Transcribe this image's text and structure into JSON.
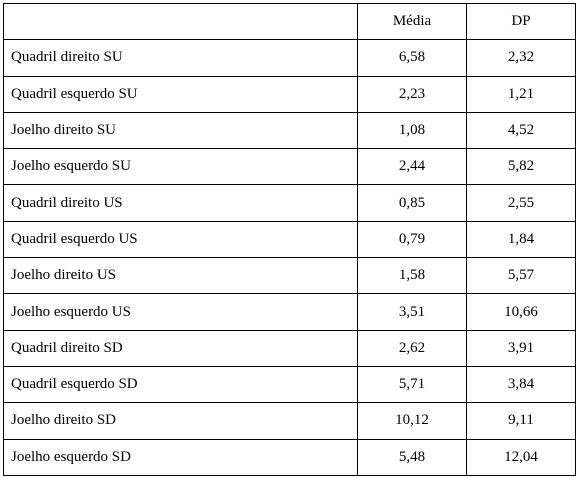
{
  "table": {
    "header": [
      "Média",
      "DP"
    ],
    "rows": [
      [
        "Quadril direito SU",
        "6,58",
        "2,32"
      ],
      [
        "Quadril esquerdo SU",
        "2,23",
        "1,21"
      ],
      [
        "Joelho direito SU",
        "1,08",
        "4,52"
      ],
      [
        "Joelho esquerdo SU",
        "2,44",
        "5,82"
      ],
      [
        "Quadril direito US",
        "0,85",
        "2,55"
      ],
      [
        "Quadril esquerdo US",
        "0,79",
        "1,84"
      ],
      [
        "Joelho direito US",
        "1,58",
        "5,57"
      ],
      [
        "Joelho esquerdo US",
        "3,51",
        "10,66"
      ],
      [
        "Quadril direito SD",
        "2,62",
        "3,91"
      ],
      [
        "Quadril esquerdo SD",
        "5,71",
        "3,84"
      ],
      [
        "Joelho direito SD",
        "10,12",
        "9,11"
      ],
      [
        "Joelho esquerdo SD",
        "5,48",
        "12,04"
      ]
    ]
  }
}
